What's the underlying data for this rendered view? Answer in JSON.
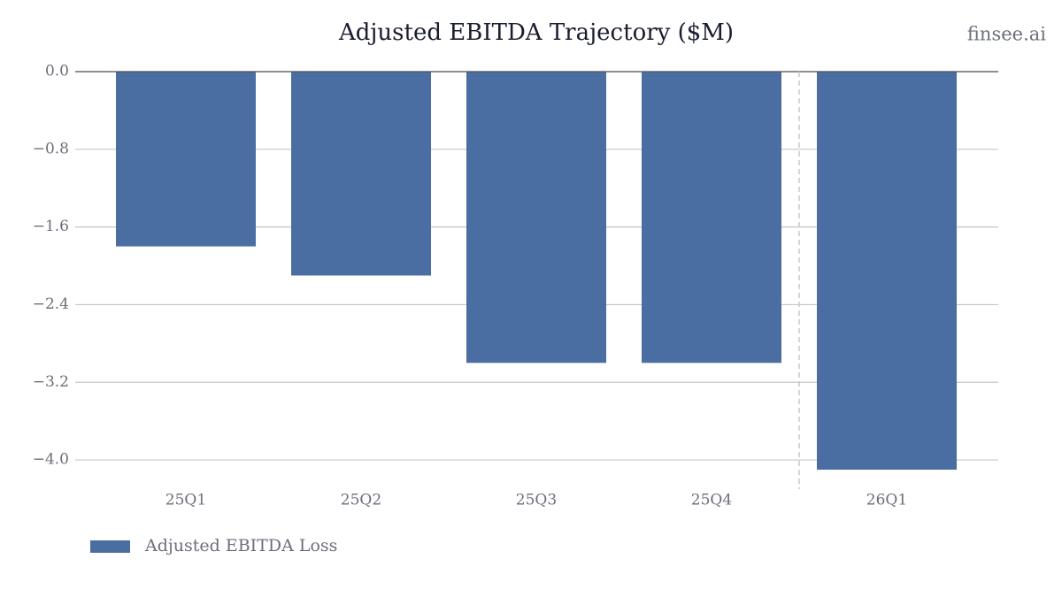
{
  "chart_data": {
    "type": "bar",
    "title": "Adjusted EBITDA Trajectory ($M)",
    "watermark": "finsee.ai",
    "categories": [
      "25Q1",
      "25Q2",
      "25Q3",
      "25Q4",
      "26Q1"
    ],
    "series": [
      {
        "name": "Adjusted EBITDA Loss",
        "color": "#4a6da2",
        "values": [
          -1.8,
          -2.1,
          -3.0,
          -3.0,
          -4.1
        ]
      }
    ],
    "ylim": [
      -4.3,
      0
    ],
    "yticks": [
      {
        "value": 0,
        "label": "0.0"
      },
      {
        "value": -0.8,
        "label": "−0.8"
      },
      {
        "value": -1.6,
        "label": "−1.6"
      },
      {
        "value": -2.4,
        "label": "−2.4"
      },
      {
        "value": -3.2,
        "label": "−3.2"
      },
      {
        "value": -4.0,
        "label": "−4.0"
      }
    ],
    "grid": true,
    "legend": "bottom-left"
  }
}
